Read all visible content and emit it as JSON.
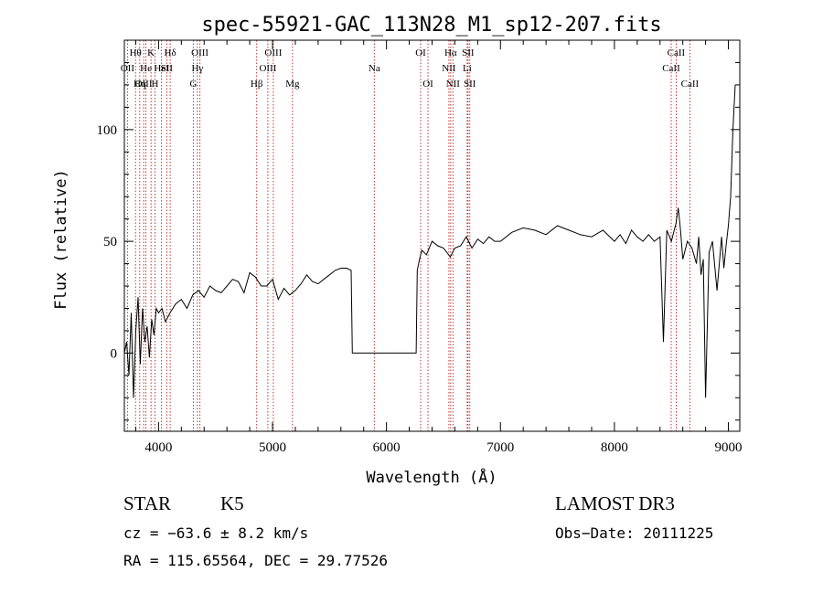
{
  "chart_data": {
    "type": "line",
    "title": "spec-55921-GAC_113N28_M1_sp12-207.fits",
    "xlabel": "Wavelength (Å)",
    "ylabel": "Flux (relative)",
    "xlim": [
      3700,
      9100
    ],
    "ylim": [
      -35,
      140
    ],
    "xticks": [
      4000,
      5000,
      6000,
      7000,
      8000,
      9000
    ],
    "yticks": [
      0,
      50,
      100
    ],
    "xtick_labels": [
      "4000",
      "5000",
      "6000",
      "7000",
      "8000",
      "9000"
    ],
    "ytick_labels": [
      "0",
      "50",
      "100"
    ],
    "grid": false,
    "line_color": "#000000",
    "marker_color": "#b22222",
    "series": [
      {
        "x": [
          3700,
          3720,
          3740,
          3760,
          3780,
          3800,
          3820,
          3840,
          3860,
          3880,
          3900,
          3920,
          3940,
          3960,
          3980,
          4000,
          4030,
          4060,
          4100,
          4150,
          4200,
          4250,
          4300,
          4350,
          4400,
          4450,
          4500,
          4550,
          4600,
          4650,
          4700,
          4750,
          4800,
          4850,
          4900,
          4950,
          5000,
          5050,
          5100,
          5150,
          5200,
          5250,
          5300,
          5350,
          5400,
          5450,
          5500,
          5550,
          5600,
          5650,
          5690,
          5700,
          5750,
          5800,
          5900,
          6000,
          6100,
          6200,
          6260,
          6270,
          6290,
          6310,
          6350,
          6400,
          6450,
          6500,
          6560,
          6600,
          6650,
          6700,
          6750,
          6800,
          6850,
          6900,
          6950,
          7000,
          7100,
          7200,
          7300,
          7400,
          7500,
          7600,
          7700,
          7800,
          7900,
          8000,
          8050,
          8100,
          8150,
          8200,
          8250,
          8300,
          8350,
          8400,
          8430,
          8460,
          8500,
          8540,
          8560,
          8580,
          8600,
          8640,
          8680,
          8720,
          8740,
          8760,
          8780,
          8800,
          8830,
          8860,
          8900,
          8940,
          8960,
          8980,
          9000,
          9020,
          9040,
          9060
        ],
        "y": [
          0,
          5,
          -10,
          18,
          -20,
          10,
          25,
          -5,
          20,
          5,
          12,
          -2,
          15,
          8,
          20,
          18,
          20,
          14,
          18,
          22,
          24,
          20,
          26,
          28,
          25,
          30,
          28,
          27,
          30,
          33,
          32,
          27,
          36,
          34,
          30,
          30,
          33,
          24,
          29,
          26,
          28,
          31,
          35,
          32,
          31,
          33,
          35,
          37,
          38,
          38,
          37,
          0,
          0,
          0,
          0,
          0,
          0,
          0,
          0,
          37,
          42,
          46,
          44,
          50,
          48,
          47,
          43,
          47,
          48,
          52,
          47,
          51,
          49,
          52,
          50,
          50,
          54,
          56,
          55,
          53,
          57,
          55,
          53,
          52,
          55,
          50,
          53,
          49,
          55,
          52,
          50,
          53,
          50,
          52,
          5,
          55,
          50,
          58,
          65,
          55,
          42,
          50,
          47,
          40,
          52,
          35,
          42,
          -20,
          45,
          50,
          28,
          52,
          38,
          48,
          57,
          70,
          100,
          120
        ]
      }
    ],
    "line_markers": [
      {
        "label": "Hθ",
        "x": 3798,
        "row": 0
      },
      {
        "label": "OII",
        "x": 3727,
        "row": 1
      },
      {
        "label": "OIII",
        "x": 3869,
        "row": 2
      },
      {
        "label": "He",
        "x": 3889,
        "row": 1
      },
      {
        "label": "Hη",
        "x": 3835,
        "row": 2
      },
      {
        "label": "K",
        "x": 3934,
        "row": 0
      },
      {
        "label": "H",
        "x": 3969,
        "row": 2
      },
      {
        "label": "HeI",
        "x": 4026,
        "row": 1
      },
      {
        "label": "SII",
        "x": 4072,
        "row": 1
      },
      {
        "label": "Hδ",
        "x": 4102,
        "row": 0
      },
      {
        "label": "OIII",
        "x": 4363,
        "row": 0
      },
      {
        "label": "Hγ",
        "x": 4341,
        "row": 1
      },
      {
        "label": "G",
        "x": 4305,
        "row": 2
      },
      {
        "label": "OIII",
        "x": 5007,
        "row": 0
      },
      {
        "label": "OIII",
        "x": 4959,
        "row": 1
      },
      {
        "label": "Hβ",
        "x": 4861,
        "row": 2
      },
      {
        "label": "Mg",
        "x": 5175,
        "row": 2
      },
      {
        "label": "Na",
        "x": 5893,
        "row": 1
      },
      {
        "label": "OI",
        "x": 6300,
        "row": 0
      },
      {
        "label": "OI",
        "x": 6364,
        "row": 2
      },
      {
        "label": "Hα",
        "x": 6563,
        "row": 0
      },
      {
        "label": "NII",
        "x": 6548,
        "row": 1
      },
      {
        "label": "NII",
        "x": 6583,
        "row": 2
      },
      {
        "label": "SII",
        "x": 6716,
        "row": 0
      },
      {
        "label": "Li",
        "x": 6708,
        "row": 1
      },
      {
        "label": "SII",
        "x": 6731,
        "row": 2
      },
      {
        "label": "CaII",
        "x": 8542,
        "row": 0
      },
      {
        "label": "CaII",
        "x": 8498,
        "row": 1
      },
      {
        "label": "CaII",
        "x": 8662,
        "row": 2
      }
    ]
  },
  "info": {
    "object_class": "STAR",
    "subclass": "K5",
    "survey": "LAMOST DR3",
    "cz": "cz = −63.6 ± 8.2 km/s",
    "obs_date": "Obs−Date: 20111225",
    "coords": "RA = 115.65564, DEC =  29.77526"
  }
}
